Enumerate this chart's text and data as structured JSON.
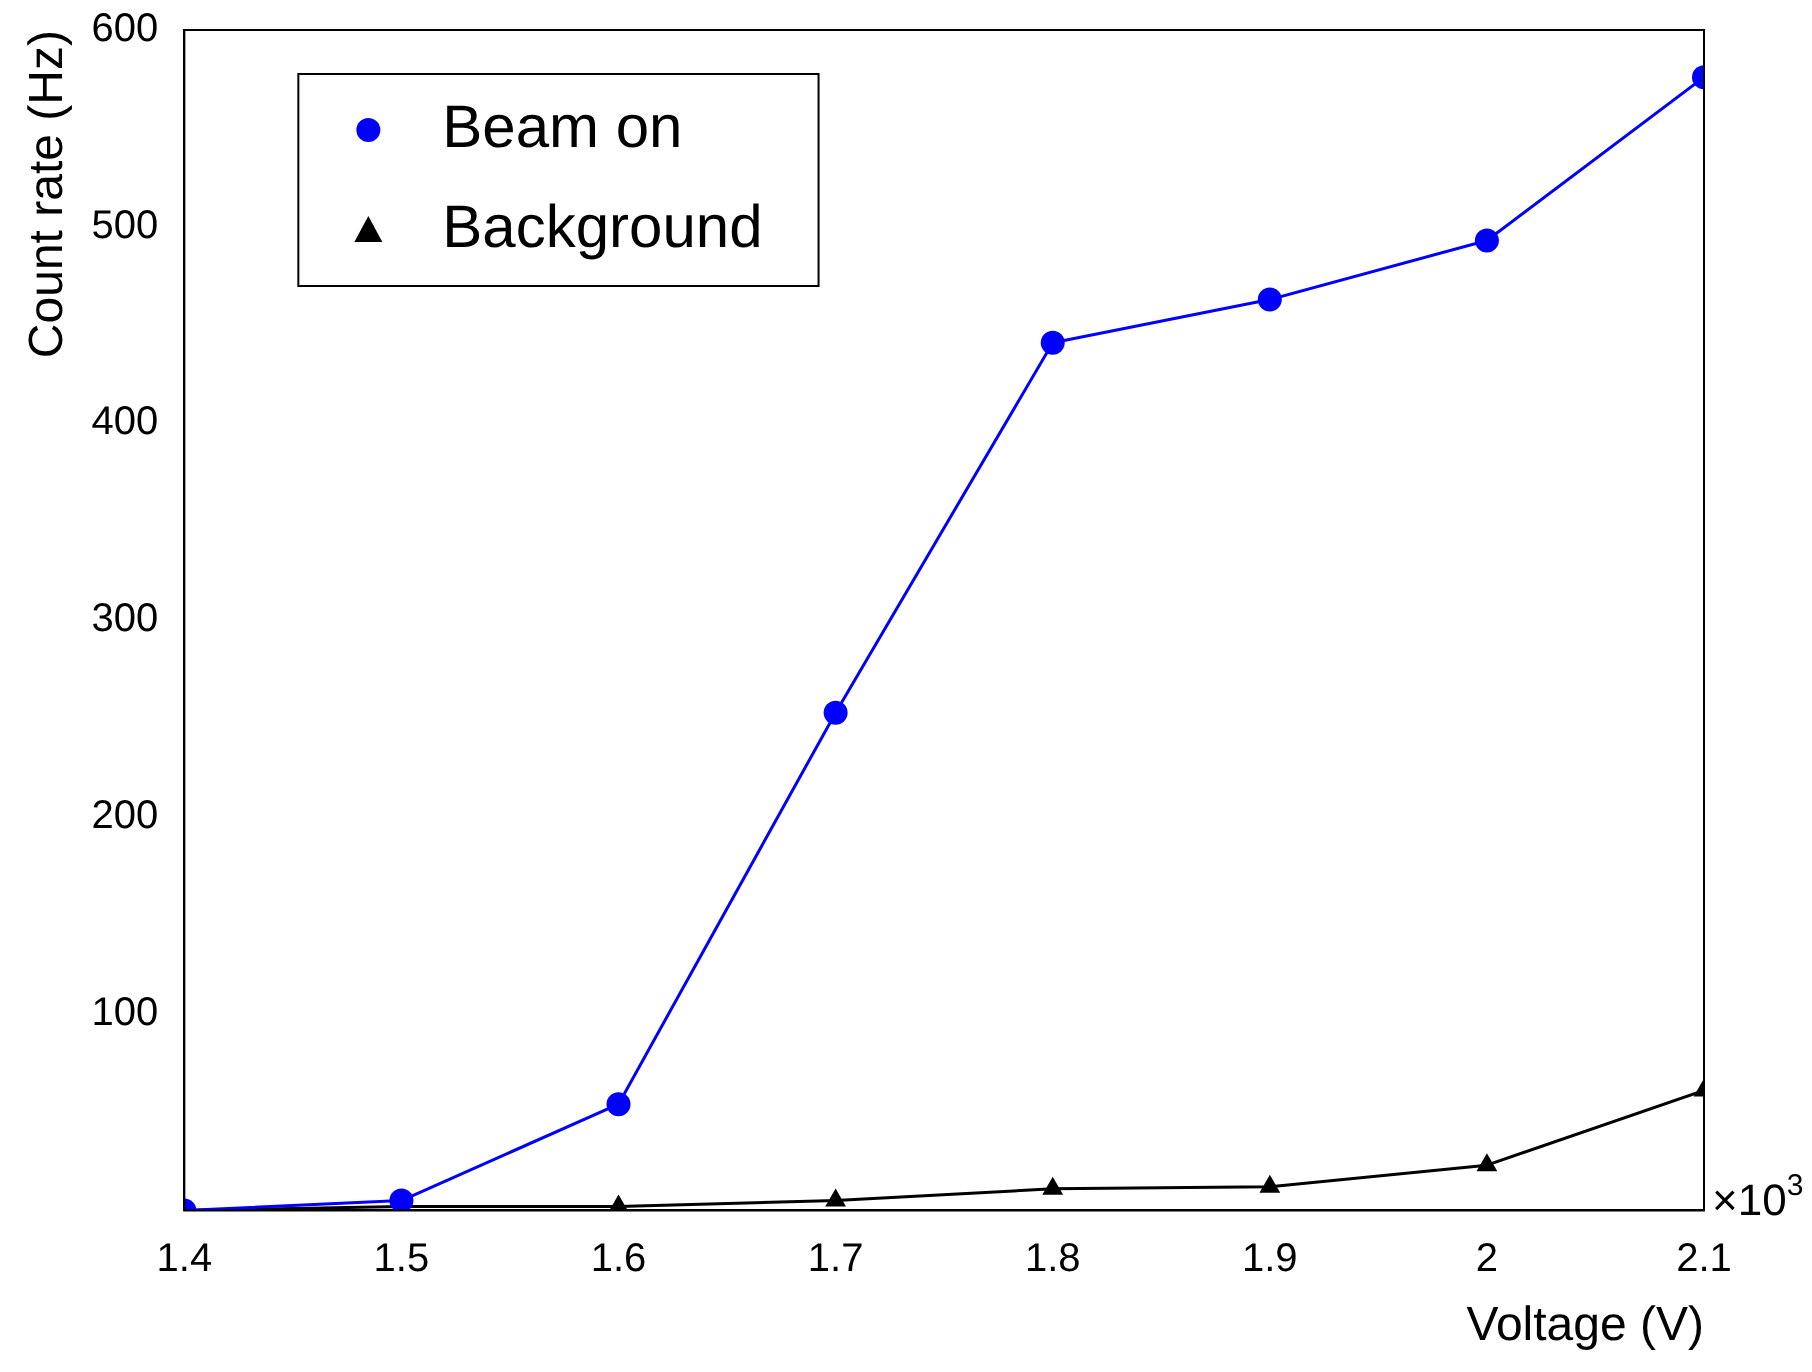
{
  "chart_data": {
    "type": "line",
    "xlabel": "Voltage (V)",
    "ylabel": "Count rate (Hz)",
    "x": [
      1.4,
      1.5,
      1.6,
      1.7,
      1.8,
      1.9,
      2.0,
      2.1
    ],
    "series": [
      {
        "name": "Beam on",
        "color": "#0000ff",
        "marker": "circle",
        "values": [
          0,
          5,
          54,
          253,
          441,
          463,
          493,
          576
        ]
      },
      {
        "name": "Background",
        "color": "#000000",
        "marker": "triangle",
        "values": [
          0,
          2,
          2,
          5,
          11,
          12,
          23,
          61
        ]
      }
    ],
    "xlim": [
      1.4,
      2.1
    ],
    "xticks": [
      1.4,
      1.5,
      1.6,
      1.7,
      1.8,
      1.9,
      {
        "value": 2.0,
        "label": "2"
      },
      2.1
    ],
    "ylim": [
      0,
      600
    ],
    "yticks": [
      100,
      200,
      300,
      400,
      500,
      600
    ],
    "annotations": [
      "×10$^{3}$"
    ],
    "grid": false,
    "legend": "top left",
    "line_style": "solid"
  }
}
